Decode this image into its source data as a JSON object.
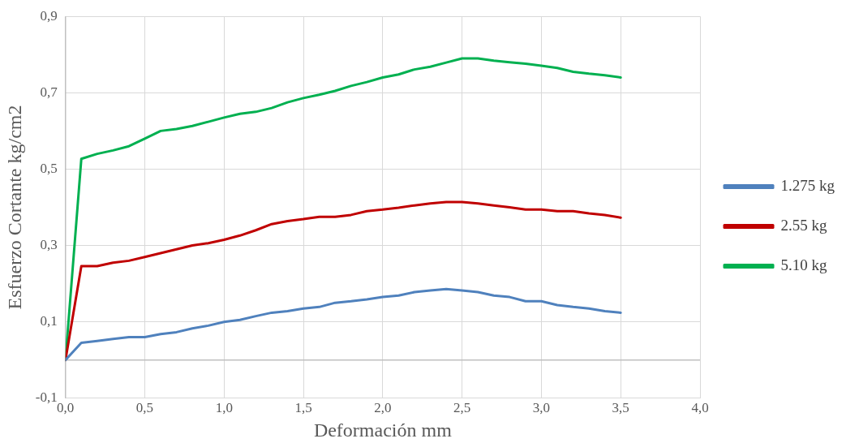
{
  "chart_data": {
    "type": "line",
    "xlabel": "Deformación mm",
    "ylabel": "Esfuerzo Cortante kg/cm2",
    "x": [
      0,
      0.1,
      0.2,
      0.3,
      0.4,
      0.5,
      0.6,
      0.7,
      0.8,
      0.9,
      1.0,
      1.1,
      1.2,
      1.3,
      1.4,
      1.5,
      1.6,
      1.7,
      1.8,
      1.9,
      2.0,
      2.1,
      2.2,
      2.3,
      2.4,
      2.5,
      2.6,
      2.7,
      2.8,
      2.9,
      3.0,
      3.1,
      3.2,
      3.3,
      3.4,
      3.5
    ],
    "series": [
      {
        "name": "1.275 kg",
        "color": "#4f81bd",
        "values": [
          0,
          0.045,
          0.05,
          0.055,
          0.06,
          0.06,
          0.068,
          0.073,
          0.083,
          0.09,
          0.1,
          0.105,
          0.115,
          0.124,
          0.128,
          0.135,
          0.139,
          0.15,
          0.154,
          0.159,
          0.165,
          0.169,
          0.178,
          0.182,
          0.186,
          0.182,
          0.178,
          0.169,
          0.165,
          0.154,
          0.154,
          0.144,
          0.139,
          0.135,
          0.128,
          0.124
        ]
      },
      {
        "name": "2.55 kg",
        "color": "#c00000",
        "values": [
          0,
          0.246,
          0.246,
          0.255,
          0.26,
          0.27,
          0.28,
          0.29,
          0.3,
          0.306,
          0.315,
          0.326,
          0.34,
          0.356,
          0.364,
          0.369,
          0.375,
          0.375,
          0.38,
          0.39,
          0.394,
          0.399,
          0.405,
          0.41,
          0.414,
          0.414,
          0.41,
          0.405,
          0.4,
          0.394,
          0.394,
          0.39,
          0.39,
          0.384,
          0.38,
          0.373
        ]
      },
      {
        "name": "5.10 kg",
        "color": "#00b050",
        "values": [
          0,
          0.527,
          0.54,
          0.549,
          0.56,
          0.58,
          0.6,
          0.605,
          0.613,
          0.624,
          0.635,
          0.645,
          0.65,
          0.66,
          0.675,
          0.686,
          0.695,
          0.705,
          0.718,
          0.728,
          0.74,
          0.748,
          0.761,
          0.768,
          0.779,
          0.79,
          0.79,
          0.784,
          0.78,
          0.776,
          0.771,
          0.765,
          0.755,
          0.75,
          0.746,
          0.74
        ]
      }
    ],
    "xlim": [
      0,
      4
    ],
    "xticks": [
      {
        "value": 0,
        "label": "0,0"
      },
      {
        "value": 0.5,
        "label": "0,5"
      },
      {
        "value": 1,
        "label": "1,0"
      },
      {
        "value": 1.5,
        "label": "1,5"
      },
      {
        "value": 2,
        "label": "2,0"
      },
      {
        "value": 2.5,
        "label": "2,5"
      },
      {
        "value": 3,
        "label": "3,0"
      },
      {
        "value": 3.5,
        "label": "3,5"
      },
      {
        "value": 4,
        "label": "4,0"
      }
    ],
    "ylim": [
      -0.1,
      0.9
    ],
    "yticks": [
      {
        "value": -0.1,
        "label": "-0,1"
      },
      {
        "value": 0.1,
        "label": "0,1"
      },
      {
        "value": 0.3,
        "label": "0,3"
      },
      {
        "value": 0.5,
        "label": "0,5"
      },
      {
        "value": 0.7,
        "label": "0,7"
      },
      {
        "value": 0.9,
        "label": "0,9"
      }
    ],
    "grid": true,
    "legend": "right",
    "marker": "none",
    "line_style": "solid"
  }
}
